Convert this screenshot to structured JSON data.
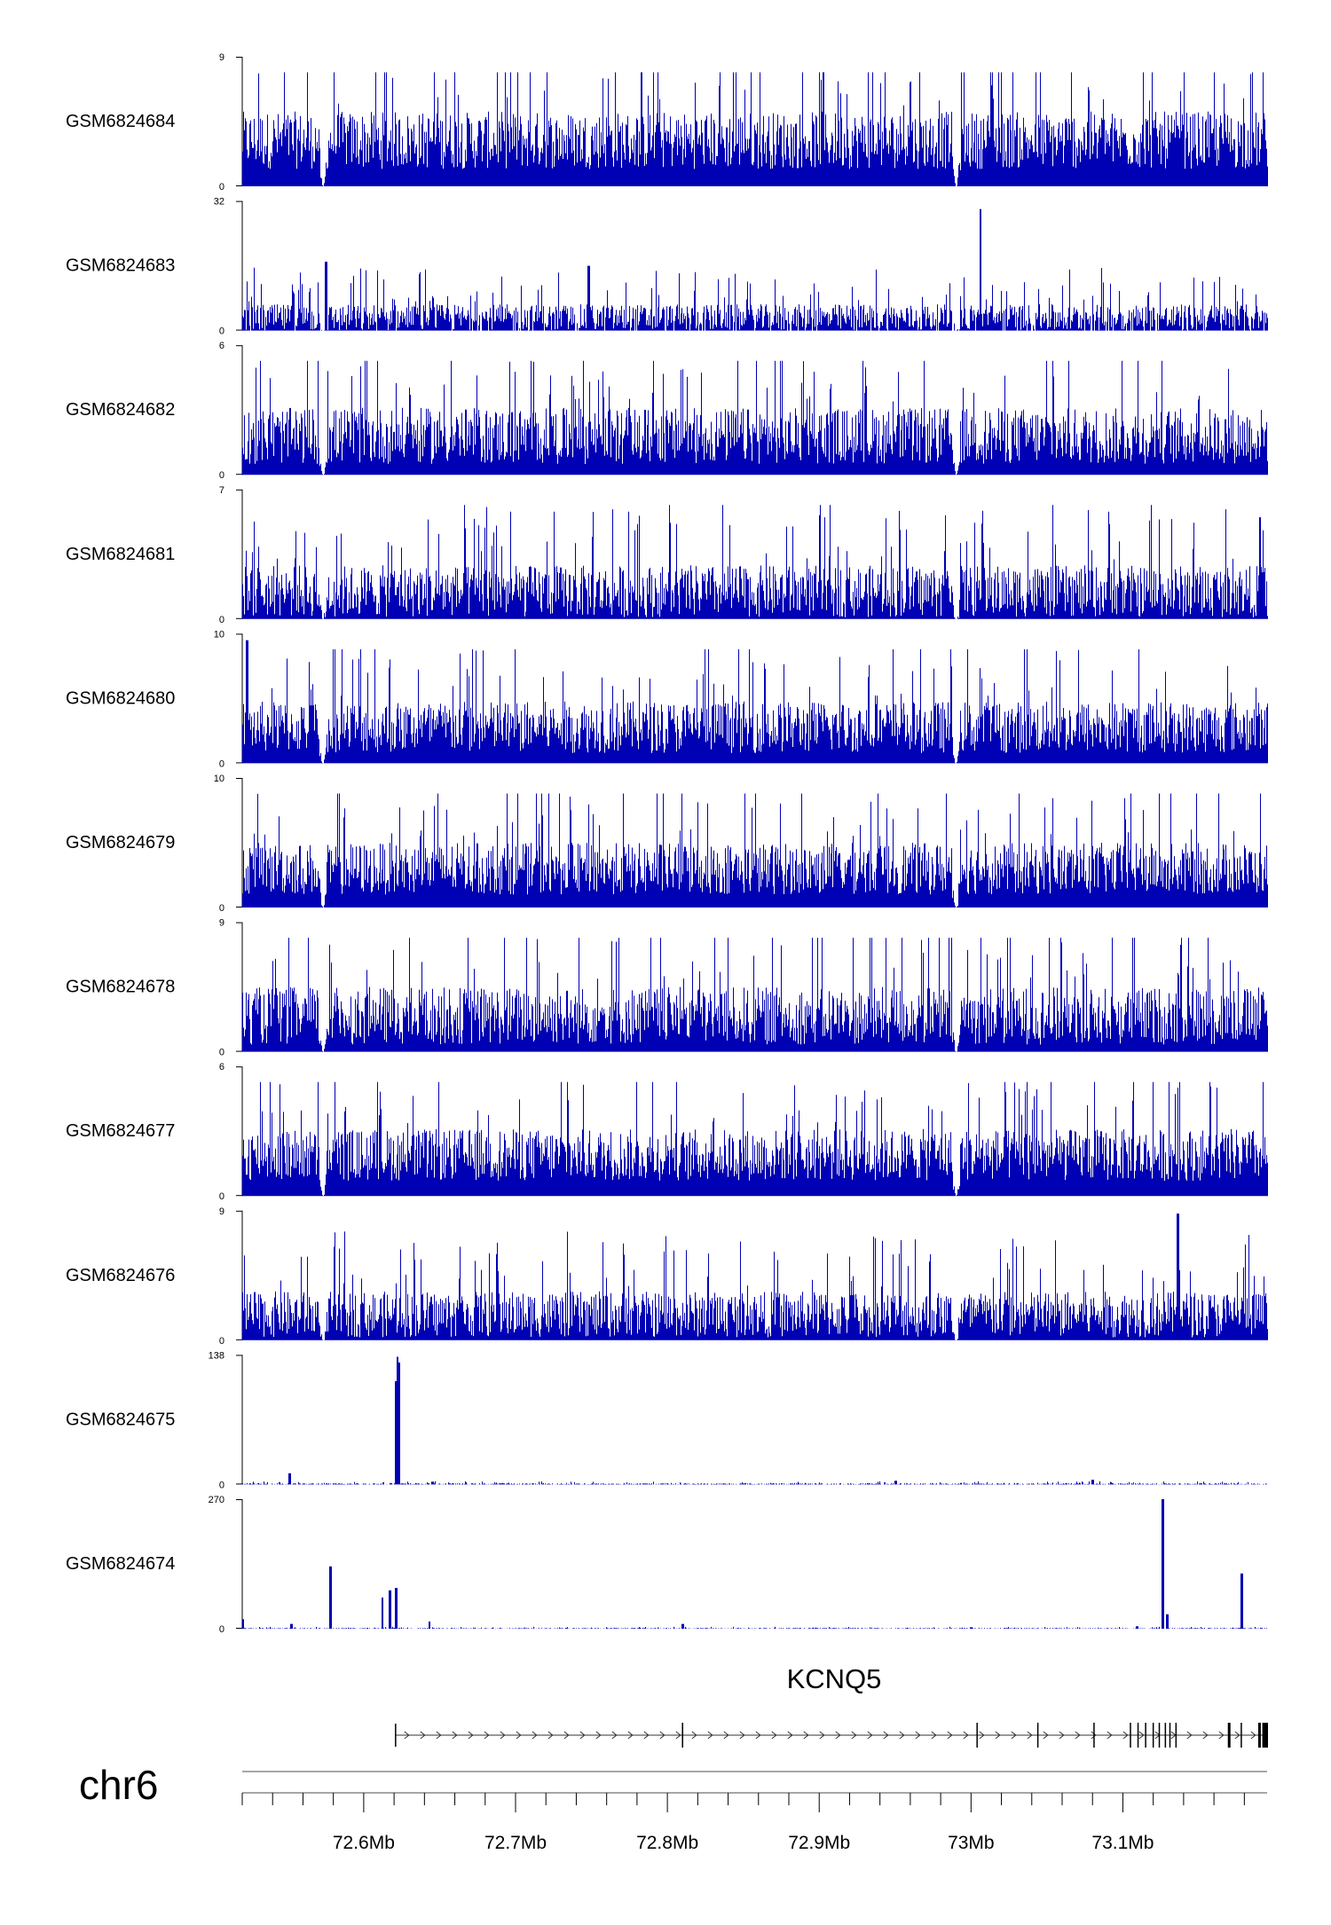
{
  "chart_data": {
    "type": "area",
    "chromosome": "chr6",
    "gene": {
      "name": "KCNQ5",
      "start": 72.621,
      "end": 73.2,
      "strand": "+",
      "exons": [
        72.621,
        72.81,
        73.004,
        73.044,
        73.081,
        73.105,
        73.11,
        73.115,
        73.12,
        73.124,
        73.128,
        73.131,
        73.135,
        73.17,
        73.178,
        73.19,
        73.193,
        73.196,
        73.199
      ]
    },
    "xaxis": {
      "range": [
        72.52,
        73.195
      ],
      "ticks": [
        "72.6Mb",
        "72.7Mb",
        "72.8Mb",
        "72.9Mb",
        "73Mb",
        "73.1Mb"
      ],
      "tick_values": [
        72.6,
        72.7,
        72.8,
        72.9,
        73.0,
        73.1
      ]
    },
    "color": "#0000b4",
    "tracks": [
      {
        "name": "GSM6824684",
        "ymax": 9,
        "baseline": 3.2,
        "noise": 2.0,
        "gaps": [
          72.573,
          72.99
        ],
        "peaks": []
      },
      {
        "name": "GSM6824683",
        "ymax": 32,
        "baseline": 3.0,
        "noise": 3.5,
        "gaps": [
          72.573,
          72.99
        ],
        "peaks": [
          [
            72.575,
            17
          ],
          [
            72.748,
            16
          ],
          [
            73.006,
            30
          ]
        ]
      },
      {
        "name": "GSM6824682",
        "ymax": 6,
        "baseline": 1.8,
        "noise": 1.3,
        "gaps": [
          72.573,
          72.99
        ],
        "peaks": []
      },
      {
        "name": "GSM6824681",
        "ymax": 7,
        "baseline": 1.5,
        "noise": 1.4,
        "gaps": [
          72.573,
          72.99
        ],
        "peaks": [
          [
            73.19,
            5.5
          ]
        ]
      },
      {
        "name": "GSM6824680",
        "ymax": 10,
        "baseline": 2.8,
        "noise": 2.0,
        "gaps": [
          72.573,
          72.99
        ],
        "peaks": [
          [
            72.523,
            9.5
          ]
        ]
      },
      {
        "name": "GSM6824679",
        "ymax": 10,
        "baseline": 3.0,
        "noise": 2.0,
        "gaps": [
          72.573,
          72.99
        ],
        "peaks": []
      },
      {
        "name": "GSM6824678",
        "ymax": 9,
        "baseline": 2.5,
        "noise": 2.0,
        "gaps": [
          72.573,
          72.99
        ],
        "peaks": []
      },
      {
        "name": "GSM6824677",
        "ymax": 6,
        "baseline": 1.9,
        "noise": 1.2,
        "gaps": [
          72.573,
          72.99
        ],
        "peaks": []
      },
      {
        "name": "GSM6824676",
        "ymax": 9,
        "baseline": 1.8,
        "noise": 1.6,
        "gaps": [
          72.573,
          72.99
        ],
        "peaks": [
          [
            73.136,
            8.8
          ]
        ]
      },
      {
        "name": "GSM6824675",
        "ymax": 138,
        "baseline": 0.5,
        "noise": 0.8,
        "gaps": [],
        "peaks": [
          [
            72.551,
            12
          ],
          [
            72.622,
            136
          ],
          [
            72.623,
            130
          ],
          [
            72.621,
            110
          ],
          [
            72.645,
            3
          ],
          [
            72.95,
            4
          ],
          [
            73.08,
            5
          ]
        ]
      },
      {
        "name": "GSM6824674",
        "ymax": 270,
        "baseline": 0.5,
        "noise": 1.0,
        "gaps": [],
        "peaks": [
          [
            72.52,
            20
          ],
          [
            72.552,
            10
          ],
          [
            72.578,
            130
          ],
          [
            72.612,
            65
          ],
          [
            72.617,
            80
          ],
          [
            72.621,
            85
          ],
          [
            72.643,
            15
          ],
          [
            72.81,
            10
          ],
          [
            73.0,
            3
          ],
          [
            73.109,
            5
          ],
          [
            73.126,
            270
          ],
          [
            73.129,
            30
          ],
          [
            73.178,
            115
          ]
        ]
      }
    ]
  }
}
